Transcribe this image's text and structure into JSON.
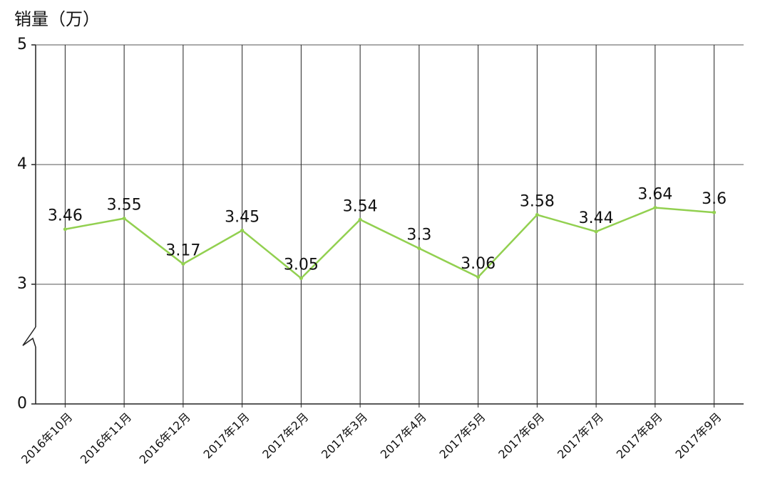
{
  "chart_data": {
    "type": "line",
    "title": "销量（万）",
    "categories": [
      "2016年10月",
      "2016年11月",
      "2016年12月",
      "2017年1月",
      "2017年2月",
      "2017年3月",
      "2017年4月",
      "2017年5月",
      "2017年6月",
      "2017年7月",
      "2017年8月",
      "2017年9月"
    ],
    "series": [
      {
        "color": "#92d050",
        "values": [
          3.46,
          3.55,
          3.17,
          3.45,
          3.05,
          3.54,
          3.3,
          3.06,
          3.58,
          3.44,
          3.64,
          3.6
        ]
      }
    ],
    "ylim": [
      0,
      5
    ],
    "yticks": [
      0,
      3,
      4,
      5
    ],
    "axis_break": true,
    "grid": true,
    "data_labels": true
  }
}
